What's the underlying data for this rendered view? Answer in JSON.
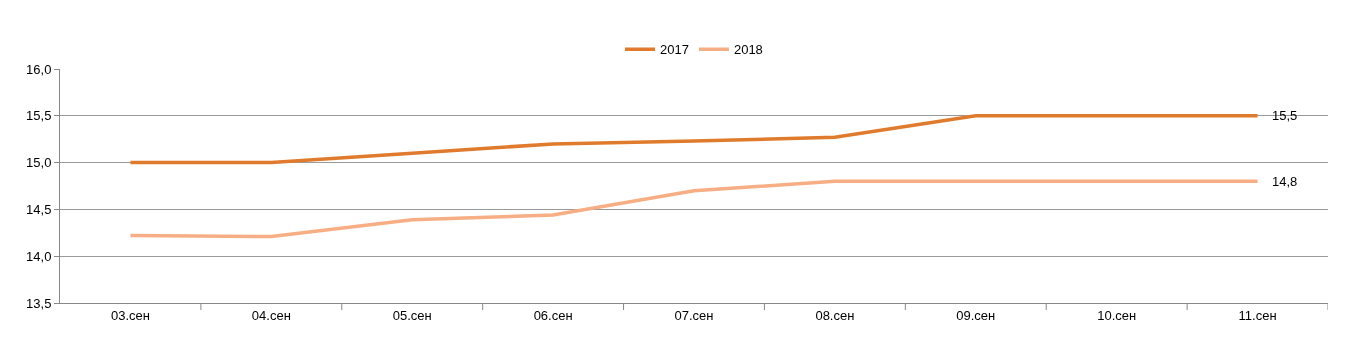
{
  "chart_data": {
    "type": "line",
    "categories": [
      "03.сен",
      "04.сен",
      "05.сен",
      "06.сен",
      "07.сен",
      "08.сен",
      "09.сен",
      "10.сен",
      "11.сен"
    ],
    "series": [
      {
        "name": "2017",
        "color": "#e07b2e",
        "values": [
          15.0,
          15.0,
          15.1,
          15.2,
          15.23,
          15.27,
          15.5,
          15.5,
          15.5
        ],
        "value_labels": [
          null,
          null,
          null,
          null,
          null,
          null,
          null,
          null,
          "15,5"
        ]
      },
      {
        "name": "2018",
        "color": "#f7ae84",
        "values": [
          14.22,
          14.21,
          14.39,
          14.44,
          14.7,
          14.8,
          14.8,
          14.8,
          14.8
        ],
        "value_labels": [
          null,
          null,
          null,
          null,
          null,
          null,
          null,
          null,
          "14,8"
        ]
      }
    ],
    "ylim": [
      13.5,
      16.0
    ],
    "yticks": [
      {
        "value": 13.5,
        "label": "13,5"
      },
      {
        "value": 14.0,
        "label": "14,0"
      },
      {
        "value": 14.5,
        "label": "14,5"
      },
      {
        "value": 15.0,
        "label": "15,0"
      },
      {
        "value": 15.5,
        "label": "15,5"
      },
      {
        "value": 16.0,
        "label": "16,0"
      }
    ],
    "grid": "y",
    "legend": "top",
    "marker": "none",
    "line_style": "solid"
  }
}
